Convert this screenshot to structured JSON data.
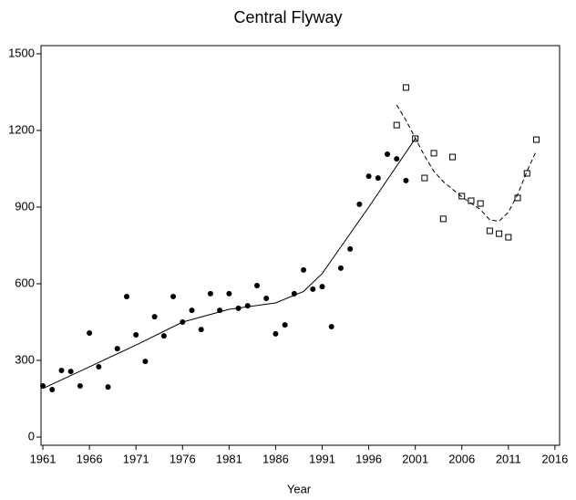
{
  "chart_data": {
    "type": "scatter",
    "title": "Central Flyway",
    "x_label": "Year",
    "xlim": [
      1960.8,
      2016.5
    ],
    "ylim": [
      -32,
      1532
    ],
    "xticks": [
      1961,
      1966,
      1971,
      1976,
      1981,
      1986,
      1991,
      1996,
      2001,
      2006,
      2011,
      2016
    ],
    "yticks": [
      0,
      300,
      600,
      900,
      1200,
      1500
    ],
    "series": [
      {
        "marker": "circle",
        "color": "#000000",
        "x": [
          1961,
          1962,
          1963,
          1964,
          1965,
          1966,
          1967,
          1968,
          1969,
          1970,
          1971,
          1972,
          1973,
          1974,
          1975,
          1976,
          1977,
          1978,
          1979,
          1980,
          1981,
          1982,
          1983,
          1984,
          1985,
          1986,
          1987,
          1988,
          1989,
          1990,
          1991,
          1992,
          1993,
          1994,
          1995,
          1996,
          1997,
          1998,
          1999,
          2000,
          2001
        ],
        "values": [
          200,
          186,
          261,
          257,
          200,
          407,
          275,
          196,
          346,
          550,
          400,
          296,
          471,
          396,
          550,
          450,
          496,
          421,
          561,
          496,
          561,
          504,
          514,
          593,
          543,
          404,
          439,
          561,
          654,
          579,
          589,
          432,
          661,
          736,
          911,
          1021,
          1014,
          1107,
          1089,
          1004,
          1168
        ]
      },
      {
        "marker": "square",
        "color": "#000000",
        "x": [
          1999,
          2000,
          2001,
          2002,
          2003,
          2004,
          2005,
          2006,
          2007,
          2008,
          2009,
          2010,
          2011,
          2012,
          2013,
          2014
        ],
        "values": [
          1221,
          1368,
          1168,
          1014,
          1111,
          854,
          1096,
          943,
          925,
          914,
          807,
          796,
          782,
          936,
          1032,
          1164
        ]
      },
      {
        "marker": "line",
        "dash": false,
        "color": "#000000",
        "x": [
          1961,
          1966,
          1971,
          1976,
          1981,
          1986,
          1989,
          1991,
          1996,
          2001
        ],
        "values": [
          190,
          275,
          360,
          450,
          500,
          525,
          570,
          640,
          900,
          1168
        ]
      },
      {
        "marker": "line",
        "dash": true,
        "color": "#000000",
        "x": [
          1999,
          2000,
          2001,
          2002,
          2003,
          2004,
          2005,
          2006,
          2007,
          2008,
          2009,
          2010,
          2011,
          2012,
          2013,
          2014
        ],
        "values": [
          1300,
          1240,
          1170,
          1100,
          1040,
          1000,
          970,
          940,
          915,
          890,
          850,
          845,
          880,
          950,
          1040,
          1120
        ]
      }
    ]
  }
}
